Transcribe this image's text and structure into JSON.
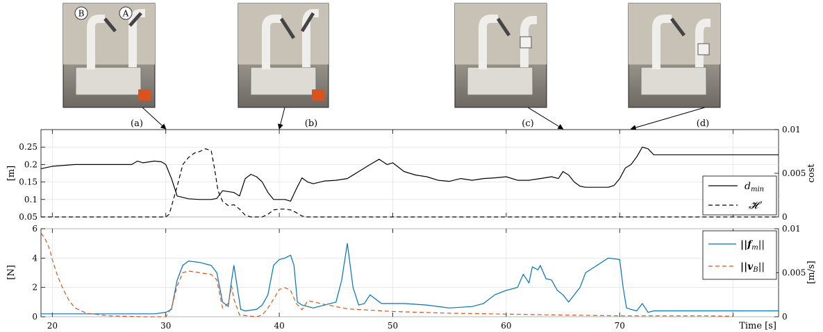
{
  "snapshots": [
    {
      "label": "(a)",
      "time": 30,
      "robot_labels": [
        "B",
        "A"
      ]
    },
    {
      "label": "(b)",
      "time": 40
    },
    {
      "label": "(c)",
      "time": 65
    },
    {
      "label": "(d)",
      "time": 71
    }
  ],
  "chart_data": [
    {
      "type": "line",
      "title": "",
      "xlim": [
        19,
        84
      ],
      "ylim": [
        0.05,
        0.3
      ],
      "ylabel": "[m]",
      "yticks": [
        "0.05",
        "0.1",
        "0.15",
        "0.2",
        "0.25"
      ],
      "yticks_values": [
        0.05,
        0.1,
        0.15,
        0.2,
        0.25
      ],
      "ylim_right": [
        0,
        0.01
      ],
      "ylabel_right": "cost",
      "yticks_right": [
        "0",
        "0.005",
        "0.01"
      ],
      "yticks_right_values": [
        0,
        0.005,
        0.01
      ],
      "grid": true,
      "legend_position": "bottom-right",
      "series": [
        {
          "name": "d_min",
          "legend": "d",
          "legend_sub": "min",
          "axis": "left",
          "color": "#000000",
          "style": "solid",
          "points": [
            [
              19,
              0.188
            ],
            [
              20,
              0.195
            ],
            [
              22,
              0.2
            ],
            [
              24,
              0.2
            ],
            [
              26,
              0.2
            ],
            [
              27,
              0.2
            ],
            [
              27.5,
              0.21
            ],
            [
              28,
              0.205
            ],
            [
              29,
              0.21
            ],
            [
              29.6,
              0.208
            ],
            [
              30,
              0.2
            ],
            [
              30.5,
              0.16
            ],
            [
              31,
              0.11
            ],
            [
              32,
              0.102
            ],
            [
              33,
              0.1
            ],
            [
              34,
              0.1
            ],
            [
              34.5,
              0.103
            ],
            [
              35,
              0.125
            ],
            [
              36,
              0.12
            ],
            [
              36.5,
              0.11
            ],
            [
              37,
              0.16
            ],
            [
              37.5,
              0.172
            ],
            [
              38,
              0.165
            ],
            [
              38.5,
              0.15
            ],
            [
              39,
              0.12
            ],
            [
              39.5,
              0.1
            ],
            [
              40,
              0.1
            ],
            [
              40.5,
              0.1
            ],
            [
              41,
              0.095
            ],
            [
              41.5,
              0.13
            ],
            [
              42,
              0.162
            ],
            [
              42.5,
              0.15
            ],
            [
              43,
              0.145
            ],
            [
              44,
              0.153
            ],
            [
              45,
              0.155
            ],
            [
              46,
              0.16
            ],
            [
              47,
              0.18
            ],
            [
              48,
              0.2
            ],
            [
              48.8,
              0.215
            ],
            [
              49.5,
              0.2
            ],
            [
              50,
              0.205
            ],
            [
              51,
              0.18
            ],
            [
              52,
              0.17
            ],
            [
              53,
              0.165
            ],
            [
              54,
              0.155
            ],
            [
              55,
              0.152
            ],
            [
              56,
              0.16
            ],
            [
              57,
              0.155
            ],
            [
              58,
              0.16
            ],
            [
              59,
              0.162
            ],
            [
              60,
              0.165
            ],
            [
              61,
              0.155
            ],
            [
              62,
              0.155
            ],
            [
              63,
              0.16
            ],
            [
              64,
              0.165
            ],
            [
              64.6,
              0.16
            ],
            [
              65,
              0.18
            ],
            [
              65.5,
              0.17
            ],
            [
              66,
              0.15
            ],
            [
              66.5,
              0.138
            ],
            [
              67,
              0.135
            ],
            [
              68,
              0.135
            ],
            [
              69,
              0.135
            ],
            [
              69.5,
              0.14
            ],
            [
              70,
              0.16
            ],
            [
              70.5,
              0.19
            ],
            [
              71,
              0.2
            ],
            [
              71.5,
              0.222
            ],
            [
              72,
              0.25
            ],
            [
              72.5,
              0.245
            ],
            [
              73,
              0.228
            ],
            [
              74,
              0.228
            ],
            [
              76,
              0.228
            ],
            [
              78,
              0.228
            ],
            [
              80,
              0.228
            ],
            [
              82,
              0.228
            ],
            [
              84,
              0.228
            ]
          ]
        },
        {
          "name": "H",
          "legend": "𝓗",
          "axis": "right",
          "color": "#000000",
          "style": "dashed",
          "points": [
            [
              19,
              0
            ],
            [
              30,
              0
            ],
            [
              30.3,
              0.0003
            ],
            [
              31,
              0.0035
            ],
            [
              31.5,
              0.006
            ],
            [
              32,
              0.0068
            ],
            [
              32.5,
              0.0073
            ],
            [
              33,
              0.0075
            ],
            [
              33.5,
              0.0078
            ],
            [
              34,
              0.0076
            ],
            [
              34.3,
              0.0055
            ],
            [
              34.6,
              0.003
            ],
            [
              35,
              0.0018
            ],
            [
              35.5,
              0.0013
            ],
            [
              36,
              0.0014
            ],
            [
              36.5,
              0.0009
            ],
            [
              37,
              0.0002
            ],
            [
              37.5,
              0
            ],
            [
              38.5,
              0
            ],
            [
              39,
              0.0003
            ],
            [
              39.5,
              0.0008
            ],
            [
              40,
              0.0009
            ],
            [
              40.5,
              0.0009
            ],
            [
              41,
              0.0008
            ],
            [
              41.5,
              0.0005
            ],
            [
              42,
              0.0001
            ],
            [
              42.5,
              0
            ],
            [
              84,
              0
            ]
          ]
        }
      ]
    },
    {
      "type": "line",
      "title": "",
      "xlim": [
        19,
        84
      ],
      "ylim": [
        0,
        6
      ],
      "ylabel": "[N]",
      "yticks": [
        "0",
        "2",
        "4",
        "6"
      ],
      "yticks_values": [
        0,
        2,
        4,
        6
      ],
      "ylim_right": [
        0,
        0.01
      ],
      "ylabel_right": "[m/s]",
      "yticks_right": [
        "0",
        "0.005",
        "0.01"
      ],
      "yticks_right_values": [
        0,
        0.005,
        0.01
      ],
      "xlabel": "Time [s]",
      "xticks": [
        "20",
        "30",
        "40",
        "50",
        "60",
        "70"
      ],
      "xticks_values": [
        20,
        30,
        40,
        50,
        60,
        70
      ],
      "grid": true,
      "legend_position": "top-right",
      "series": [
        {
          "name": "||f_m||",
          "legend": "||f",
          "legend_sub": "m",
          "legend_tail": "||",
          "axis": "left",
          "color": "#0072BD",
          "style": "solid",
          "points": [
            [
              19,
              0.2
            ],
            [
              25,
              0.2
            ],
            [
              29,
              0.2
            ],
            [
              30,
              0.3
            ],
            [
              30.5,
              0.5
            ],
            [
              31,
              2.5
            ],
            [
              31.5,
              3.5
            ],
            [
              32,
              3.8
            ],
            [
              33,
              3.7
            ],
            [
              34,
              3.5
            ],
            [
              34.5,
              3.0
            ],
            [
              35,
              1.0
            ],
            [
              35.5,
              0.7
            ],
            [
              35.8,
              2.5
            ],
            [
              36,
              3.5
            ],
            [
              36.3,
              2.0
            ],
            [
              36.6,
              0.5
            ],
            [
              37,
              0.4
            ],
            [
              38,
              0.5
            ],
            [
              38.5,
              0.8
            ],
            [
              39,
              1.5
            ],
            [
              39.5,
              3.5
            ],
            [
              40,
              3.9
            ],
            [
              40.5,
              4.0
            ],
            [
              41,
              4.2
            ],
            [
              41.3,
              3.5
            ],
            [
              41.6,
              1.0
            ],
            [
              42,
              0.8
            ],
            [
              43,
              0.6
            ],
            [
              44,
              0.8
            ],
            [
              45,
              1.0
            ],
            [
              45.5,
              2.5
            ],
            [
              46,
              5.0
            ],
            [
              46.5,
              2.0
            ],
            [
              47,
              0.8
            ],
            [
              47.5,
              0.9
            ],
            [
              48,
              1.5
            ],
            [
              48.5,
              1.2
            ],
            [
              49,
              0.9
            ],
            [
              51,
              0.9
            ],
            [
              53,
              0.8
            ],
            [
              55,
              0.6
            ],
            [
              57,
              0.7
            ],
            [
              58,
              0.9
            ],
            [
              59,
              1.5
            ],
            [
              60,
              1.8
            ],
            [
              61,
              2.0
            ],
            [
              61.5,
              2.9
            ],
            [
              62,
              2.3
            ],
            [
              62.3,
              3.4
            ],
            [
              62.8,
              3.2
            ],
            [
              63,
              3.5
            ],
            [
              63.5,
              2.6
            ],
            [
              64,
              2.5
            ],
            [
              64.5,
              1.8
            ],
            [
              65,
              1.5
            ],
            [
              65.5,
              1.0
            ],
            [
              66,
              1.5
            ],
            [
              66.5,
              2.0
            ],
            [
              67,
              3.0
            ],
            [
              68,
              3.5
            ],
            [
              69,
              4.0
            ],
            [
              70,
              3.9
            ],
            [
              70.3,
              2.0
            ],
            [
              70.6,
              0.6
            ],
            [
              71,
              0.5
            ],
            [
              71.5,
              0.4
            ],
            [
              72,
              0.9
            ],
            [
              72.5,
              0.3
            ],
            [
              73,
              0.4
            ],
            [
              80,
              0.4
            ],
            [
              84,
              0.4
            ]
          ]
        },
        {
          "name": "||v_B||",
          "legend": "||v",
          "legend_sub": "B",
          "legend_tail": "||",
          "axis": "right",
          "color": "#D95319",
          "style": "dashed",
          "points": [
            [
              19,
              0.0095
            ],
            [
              19.3,
              0.009
            ],
            [
              19.6,
              0.0082
            ],
            [
              19.8,
              0.0075
            ],
            [
              20,
              0.0065
            ],
            [
              20.5,
              0.0045
            ],
            [
              21,
              0.003
            ],
            [
              21.5,
              0.0018
            ],
            [
              22,
              0.001
            ],
            [
              23,
              0.0004
            ],
            [
              25,
              0.0001
            ],
            [
              28,
              0
            ],
            [
              30,
              0
            ],
            [
              30.5,
              0.001
            ],
            [
              31,
              0.0035
            ],
            [
              31.5,
              0.005
            ],
            [
              32,
              0.0052
            ],
            [
              33,
              0.005
            ],
            [
              34,
              0.0048
            ],
            [
              34.5,
              0.0042
            ],
            [
              35,
              0.001
            ],
            [
              35.5,
              0.0015
            ],
            [
              35.8,
              0.0035
            ],
            [
              36,
              0.002
            ],
            [
              36.5,
              0.0002
            ],
            [
              38,
              0
            ],
            [
              38.5,
              0.0002
            ],
            [
              39,
              0.001
            ],
            [
              39.5,
              0.002
            ],
            [
              40,
              0.0031
            ],
            [
              40.5,
              0.0033
            ],
            [
              41,
              0.003
            ],
            [
              41.5,
              0.0015
            ],
            [
              42,
              0.0008
            ],
            [
              42.5,
              0.0018
            ],
            [
              43,
              0.0017
            ],
            [
              44,
              0.0014
            ],
            [
              46,
              0.0009
            ],
            [
              50,
              0.0006
            ],
            [
              55,
              0.0004
            ],
            [
              60,
              0.0003
            ],
            [
              65,
              0.0002
            ],
            [
              70,
              0.0001
            ],
            [
              75,
              0.0001
            ],
            [
              78,
              0.0001
            ],
            [
              80,
              5e-05
            ]
          ]
        }
      ]
    }
  ]
}
